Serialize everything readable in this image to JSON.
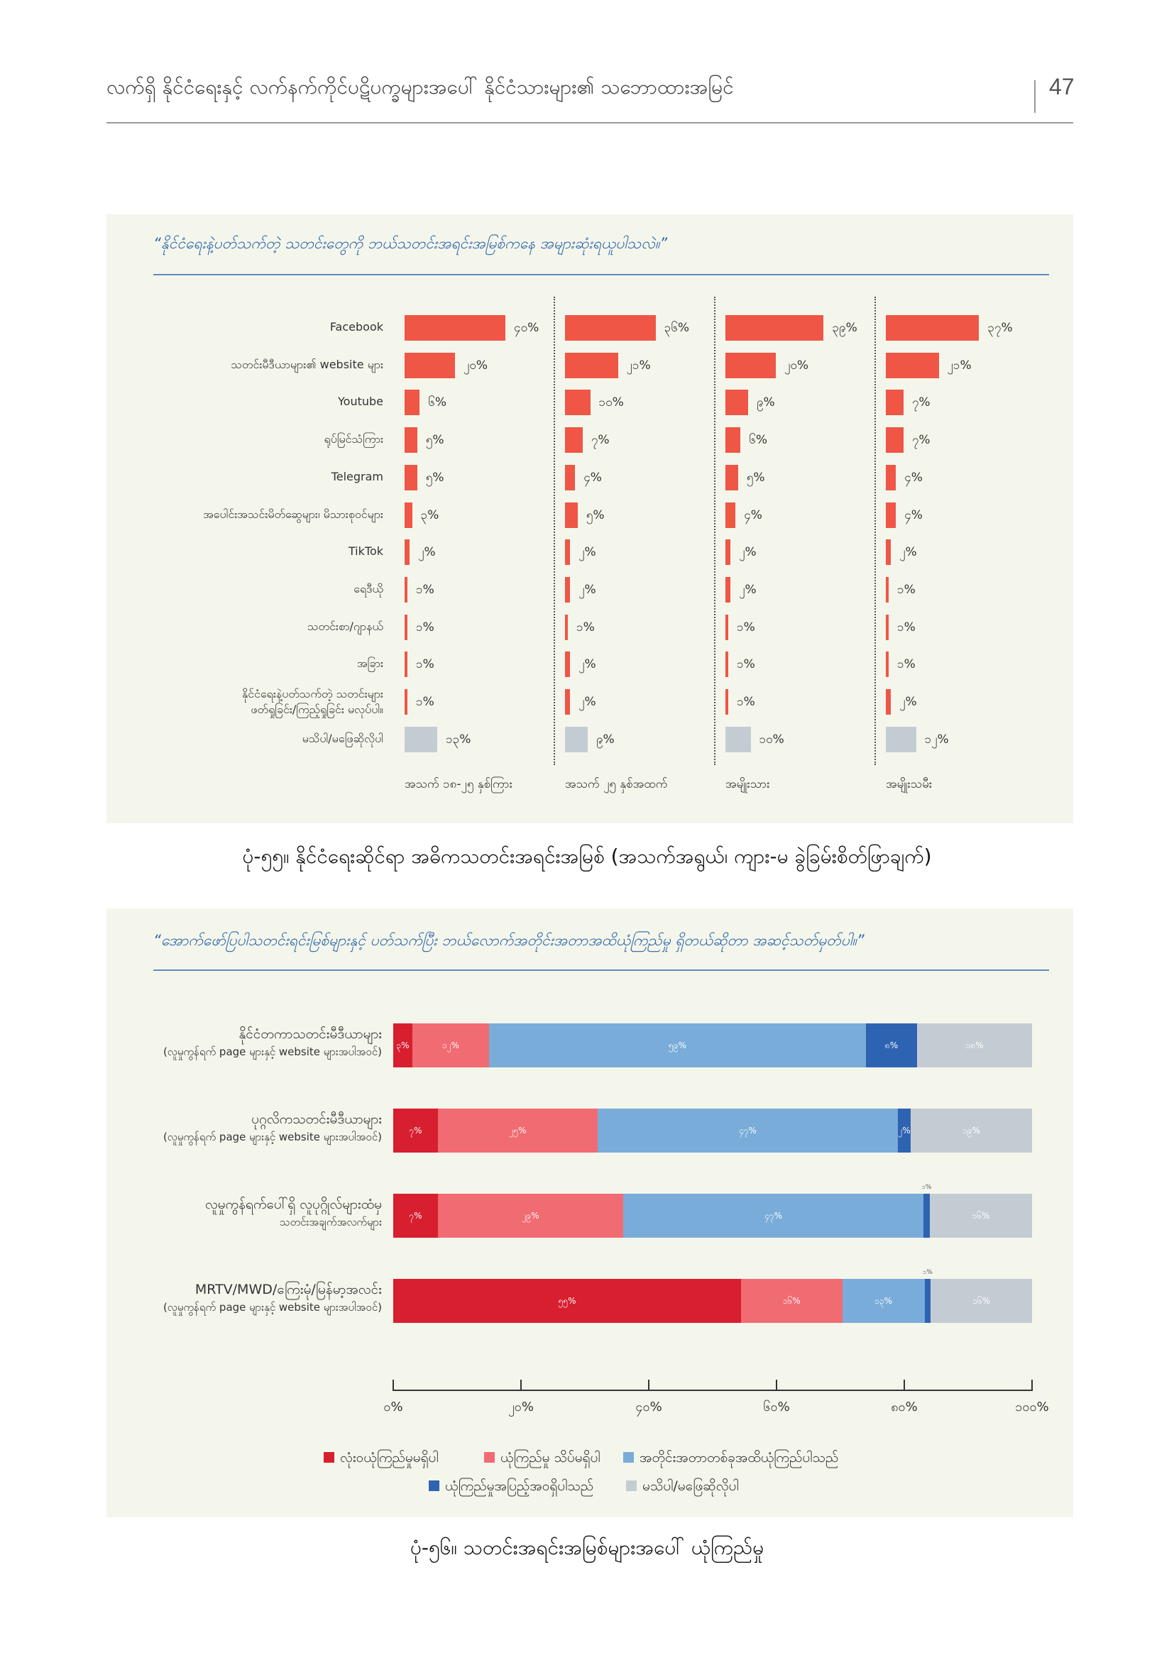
{
  "header": {
    "title": "လက်ရှိ နိုင်ငံရေးနှင့် လက်နက်ကိုင်ပဋိပက္ခများအပေါ် နိုင်ငံသားများ၏ သဘောထားအမြင်",
    "page_number": "47"
  },
  "colors": {
    "panel_bg": "#f4f6ec",
    "bar_red": "#ef5645",
    "bar_grey": "#c4ccd3",
    "no_trust": "#d81f30",
    "little_trust": "#f16b72",
    "some_trust": "#79acd9",
    "full_trust": "#2e63b2",
    "dont_know": "#c4ccd3"
  },
  "chart_data": [
    {
      "type": "bar",
      "orientation": "horizontal",
      "question": "“နိုင်ငံရေးနဲ့ပတ်သက်တဲ့ သတင်းတွေကို ဘယ်သတင်းအရင်းအမြစ်ကနေ အများဆုံးရယူပါသလဲ။”",
      "caption": "ပုံ-၅၅။ နိုင်ငံရေးဆိုင်ရာ အဓိကသတင်းအရင်းအမြစ် (အသက်အရွယ်၊ ကျား-မ ခွဲခြမ်းစိတ်ဖြာချက်)",
      "categories": [
        "Facebook",
        "သတင်းမီဒီယာများ၏ website များ",
        "Youtube",
        "ရုပ်မြင်သံကြား",
        "Telegram",
        "အပေါင်းအသင်းမိတ်ဆွေများ၊ မိသားစုဝင်များ",
        "TikTok",
        "ရေဒီယို",
        "သတင်းစာ/ဂျာနယ်",
        "အခြား",
        "နိုင်ငံရေးနဲ့ပတ်သက်တဲ့ သတင်းများ ဖတ်ရှုခြင်း/ကြည့်ရှုခြင်း မလုပ်ပါ။",
        "မသိပါ/မဖြေဆိုလိုပါ"
      ],
      "category_lines": [
        [
          "Facebook"
        ],
        [
          "သတင်းမီဒီယာများ၏ website များ"
        ],
        [
          "Youtube"
        ],
        [
          "ရုပ်မြင်သံကြား"
        ],
        [
          "Telegram"
        ],
        [
          "အပေါင်းအသင်းမိတ်ဆွေများ၊ မိသားစုဝင်များ"
        ],
        [
          "TikTok"
        ],
        [
          "ရေဒီယို"
        ],
        [
          "သတင်းစာ/ဂျာနယ်"
        ],
        [
          "အခြား"
        ],
        [
          "နိုင်ငံရေးနဲ့ပတ်သက်တဲ့ သတင်းများ",
          "ဖတ်ရှုခြင်း/ကြည့်ရှုခြင်း မလုပ်ပါ။"
        ],
        [
          "မသိပါ/မဖြေဆိုလိုပါ"
        ]
      ],
      "series": [
        {
          "name": "အသက် ၁၈-၂၅ နှစ်ကြား",
          "values": [
            40,
            20,
            6,
            5,
            5,
            3,
            2,
            1,
            1,
            1,
            1,
            13
          ],
          "labels": [
            "၄၀%",
            "၂၀%",
            "၆%",
            "၅%",
            "၅%",
            "၃%",
            "၂%",
            "၁%",
            "၁%",
            "၁%",
            "၁%",
            "၁၃%"
          ]
        },
        {
          "name": "အသက် ၂၅ နှစ်အထက်",
          "values": [
            36,
            21,
            10,
            7,
            4,
            5,
            2,
            2,
            1,
            2,
            2,
            9
          ],
          "labels": [
            "၃၆%",
            "၂၁%",
            "၁၀%",
            "၇%",
            "၄%",
            "၅%",
            "၂%",
            "၂%",
            "၁%",
            "၂%",
            "၂%",
            "၉%"
          ]
        },
        {
          "name": "အမျိုးသား",
          "values": [
            39,
            20,
            9,
            6,
            5,
            4,
            2,
            2,
            1,
            1,
            1,
            10
          ],
          "labels": [
            "၃၉%",
            "၂၀%",
            "၉%",
            "၆%",
            "၅%",
            "၄%",
            "၂%",
            "၂%",
            "၁%",
            "၁%",
            "၁%",
            "၁၀%"
          ]
        },
        {
          "name": "အမျိုးသမီး",
          "values": [
            37,
            21,
            7,
            7,
            4,
            4,
            2,
            1,
            1,
            1,
            2,
            12
          ],
          "labels": [
            "၃၇%",
            "၂၁%",
            "၇%",
            "၇%",
            "၄%",
            "၄%",
            "၂%",
            "၁%",
            "၁%",
            "၁%",
            "၂%",
            "၁၂%"
          ]
        }
      ],
      "highlight_last_category": true
    },
    {
      "type": "bar",
      "orientation": "horizontal",
      "stacked": true,
      "question": "“အောက်ဖော်ပြပါသတင်းရင်းမြစ်များနှင့် ပတ်သက်ပြီး ဘယ်လောက်အတိုင်းအတာအထိယုံကြည်မှု ရှိတယ်ဆိုတာ အဆင့်သတ်မှတ်ပါ။”",
      "caption": "ပုံ-၅၆။ သတင်းအရင်းအမြစ်များအပေါ် ယုံကြည်မှု",
      "categories": [
        {
          "line1": "နိုင်ငံတကာသတင်းမီဒီယာများ",
          "line2": "(လူမှုကွန်ရက် page များနှင့် website များအပါအဝင်)"
        },
        {
          "line1": "ပုဂ္ဂလိကသတင်းမီဒီယာများ",
          "line2": "(လူမှုကွန်ရက် page များနှင့် website များအပါအဝင်)"
        },
        {
          "line1": "လူမှုကွန်ရက်ပေါ်ရှိ လူပုဂ္ဂိုလ်များထံမှ",
          "line2": "သတင်းအချက်အလက်များ"
        },
        {
          "line1": "MRTV/MWD/ကြေးမုံ/မြန်မာ့အလင်း",
          "line2": "(လူမှုကွန်ရက် page များနှင့် website များအပါအဝင်)"
        }
      ],
      "series": [
        {
          "name": "လုံးဝယုံကြည်မှုမရှိပါ",
          "values": [
            3,
            7,
            7,
            55
          ],
          "labels": [
            "၃%",
            "၇%",
            "၇%",
            "၅၅%"
          ]
        },
        {
          "name": "ယုံကြည်မှု သိပ်မရှိပါ",
          "values": [
            12,
            25,
            29,
            16
          ],
          "labels": [
            "၁၂%",
            "၂၅%",
            "၂၉%",
            "၁၆%"
          ]
        },
        {
          "name": "အတိုင်းအတာတစ်ခုအထိယုံကြည်ပါသည်",
          "values": [
            59,
            47,
            47,
            13
          ],
          "labels": [
            "၅၉%",
            "၄၇%",
            "၄၇%",
            "၁၃%"
          ]
        },
        {
          "name": "ယုံကြည်မှုအပြည့်အဝရှိပါသည်",
          "values": [
            8,
            2,
            1,
            1
          ],
          "labels": [
            "၈%",
            "၂%",
            "၁%",
            "၁%"
          ]
        },
        {
          "name": "မသိပါ/မဖြေဆိုလိုပါ",
          "values": [
            18,
            19,
            16,
            16
          ],
          "labels": [
            "၁၈%",
            "၁၉%",
            "၁၆%",
            "၁၆%"
          ]
        }
      ],
      "xlim": [
        0,
        100
      ],
      "x_ticks": [
        "၀%",
        "၂၀%",
        "၄၀%",
        "၆၀%",
        "၈၀%",
        "၁၀၀%"
      ],
      "legend_position": "bottom"
    }
  ]
}
